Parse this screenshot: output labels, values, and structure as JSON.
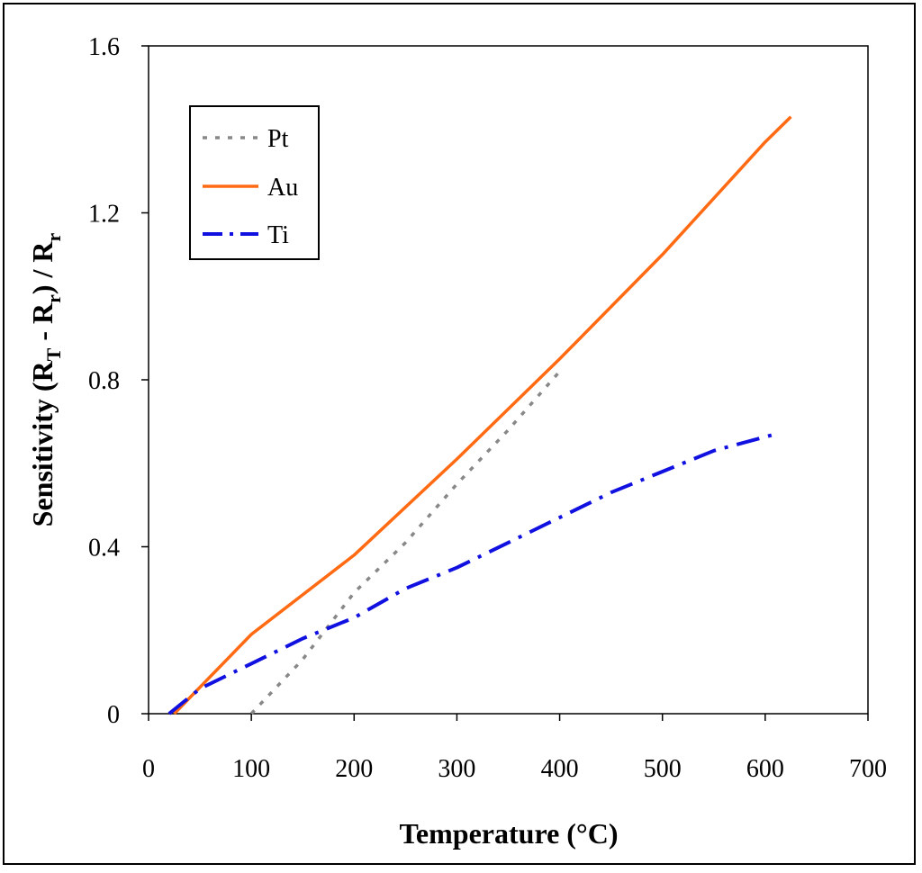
{
  "chart_data": {
    "type": "line",
    "title": "",
    "xlabel": "Temperature (°C)",
    "ylabel_main": "Sensitivity (R",
    "ylabel_sub_t1": "T",
    "ylabel_mid": " - R",
    "ylabel_sub_r1": "r",
    "ylabel_close": ") / R",
    "ylabel_sub_r2": "r",
    "xlim": [
      0,
      700
    ],
    "ylim": [
      0,
      1.6
    ],
    "xticks": [
      0,
      100,
      200,
      300,
      400,
      500,
      600,
      700
    ],
    "xtick_labels": [
      "0",
      "100",
      "200",
      "300",
      "400",
      "500",
      "600",
      "700"
    ],
    "yticks": [
      0,
      0.4,
      0.8,
      1.2,
      1.6
    ],
    "ytick_labels": [
      "0",
      "0.4",
      "0.8",
      "1.2",
      "1.6"
    ],
    "legend_position": "top-left",
    "series": [
      {
        "name": "Pt",
        "color": "#888888",
        "style": "dotted",
        "x": [
          100,
          150,
          200,
          250,
          300,
          350,
          400
        ],
        "y": [
          0.0,
          0.13,
          0.29,
          0.41,
          0.55,
          0.68,
          0.82
        ]
      },
      {
        "name": "Au",
        "color": "#ff6a13",
        "style": "solid",
        "x": [
          25,
          100,
          200,
          300,
          400,
          500,
          600,
          625
        ],
        "y": [
          0.0,
          0.19,
          0.38,
          0.61,
          0.85,
          1.1,
          1.37,
          1.43
        ]
      },
      {
        "name": "Ti",
        "color": "#1010e0",
        "style": "dashdot",
        "x": [
          20,
          50,
          100,
          150,
          200,
          250,
          300,
          350,
          400,
          450,
          500,
          550,
          610
        ],
        "y": [
          0.0,
          0.06,
          0.12,
          0.18,
          0.23,
          0.3,
          0.35,
          0.41,
          0.47,
          0.53,
          0.58,
          0.63,
          0.67
        ]
      }
    ]
  }
}
